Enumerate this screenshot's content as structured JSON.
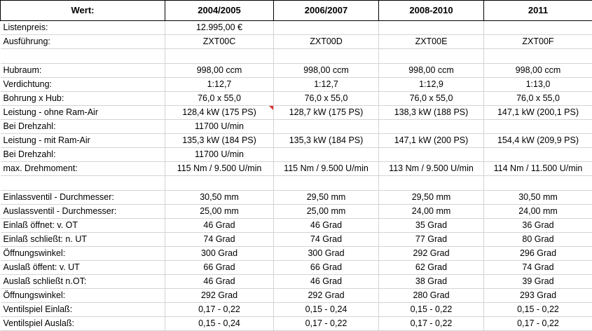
{
  "header": [
    "Wert:",
    "2004/2005",
    "2006/2007",
    "2008-2010",
    "2011"
  ],
  "rows": [
    [
      "Listenpreis:",
      "12.995,00 €",
      "",
      "",
      ""
    ],
    [
      "Ausführung:",
      "ZXT00C",
      "ZXT00D",
      "ZXT00E",
      "ZXT00F"
    ],
    [
      "",
      "",
      "",
      "",
      ""
    ],
    [
      "Hubraum:",
      "998,00 ccm",
      "998,00 ccm",
      "998,00 ccm",
      "998,00 ccm"
    ],
    [
      "Verdichtung:",
      "1:12,7",
      "1:12,7",
      "1:12,9",
      "1:13,0"
    ],
    [
      "Bohrung x Hub:",
      "76,0 x 55,0",
      "76,0 x 55,0",
      "76,0 x 55,0",
      "76,0 x 55,0"
    ],
    [
      "Leistung - ohne Ram-Air",
      "128,4 kW (175 PS)",
      "128,7 kW (175 PS)",
      "138,3 kW (188 PS)",
      "147,1 kW (200,1 PS)"
    ],
    [
      "Bei Drehzahl:",
      "11700 U/min",
      "",
      "",
      ""
    ],
    [
      "Leistung - mit Ram-Air",
      "135,3 kW (184 PS)",
      "135,3 kW (184 PS)",
      "147,1 kW (200 PS)",
      "154,4 kW (209,9 PS)"
    ],
    [
      "Bei Drehzahl:",
      "11700 U/min",
      "",
      "",
      ""
    ],
    [
      "max. Drehmoment:",
      "115 Nm / 9.500 U/min",
      "115 Nm / 9.500 U/min",
      "113 Nm / 9.500 U/min",
      "114 Nm / 11.500 U/min"
    ],
    [
      "",
      "",
      "",
      "",
      ""
    ],
    [
      "Einlassventil - Durchmesser:",
      "30,50 mm",
      "29,50 mm",
      "29,50 mm",
      "30,50 mm"
    ],
    [
      "Auslassventil - Durchmesser:",
      "25,00 mm",
      "25,00 mm",
      "24,00 mm",
      "24,00 mm"
    ],
    [
      "Einlaß öffnet: v. OT",
      "46 Grad",
      "46 Grad",
      "35 Grad",
      "36 Grad"
    ],
    [
      "Einlaß schließt: n. UT",
      "74 Grad",
      "74 Grad",
      "77 Grad",
      "80 Grad"
    ],
    [
      "Öffnungswinkel:",
      "300 Grad",
      "300 Grad",
      "292 Grad",
      "296 Grad"
    ],
    [
      "Auslaß öffent: v. UT",
      "66 Grad",
      "66 Grad",
      "62 Grad",
      "74 Grad"
    ],
    [
      "Auslaß schließt n.OT:",
      "46 Grad",
      "46 Grad",
      "38 Grad",
      "39 Grad"
    ],
    [
      "Öffnungswinkel:",
      "292 Grad",
      "292 Grad",
      "280 Grad",
      "293 Grad"
    ],
    [
      "Ventilspiel Einlaß:",
      "0,17 - 0,22",
      "0,15 - 0,24",
      "0,15 - 0,22",
      "0,15 - 0,22"
    ],
    [
      "Ventilspiel Auslaß:",
      "0,15 - 0,24",
      "0,17 - 0,22",
      "0,17 - 0,22",
      "0,17 - 0,22"
    ]
  ],
  "comment_cell": {
    "row": 6,
    "col": 1
  },
  "colors": {
    "comment_marker": "#e03030",
    "grid": "#d4d4d4",
    "header_border": "#000000"
  }
}
